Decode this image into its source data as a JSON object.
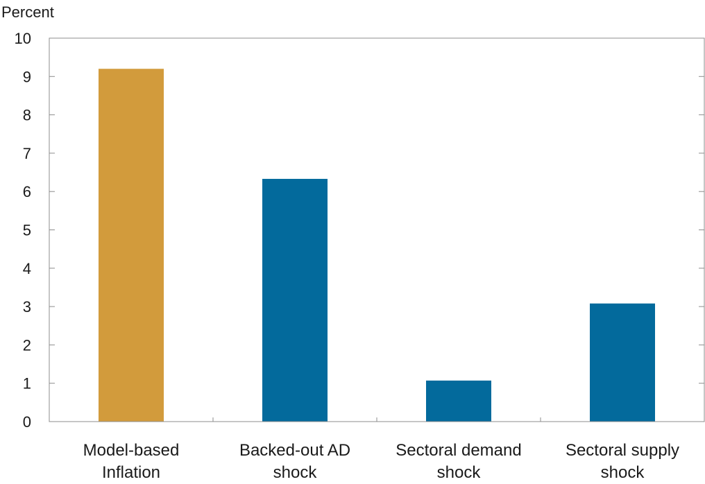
{
  "chart_data": {
    "type": "bar",
    "title": "",
    "ylabel": "Percent",
    "xlabel": "",
    "ylim": [
      0,
      10
    ],
    "yticks": [
      0,
      1,
      2,
      3,
      4,
      5,
      6,
      7,
      8,
      9,
      10
    ],
    "grid": false,
    "legend": "none",
    "categories": [
      [
        "Model-based",
        "Inflation"
      ],
      [
        "Backed-out AD",
        "shock"
      ],
      [
        "Sectoral demand",
        "shock"
      ],
      [
        "Sectoral supply",
        "shock"
      ]
    ],
    "values": [
      9.2,
      6.33,
      1.07,
      3.08
    ],
    "colors": [
      "#D29B3C",
      "#036A9C",
      "#036A9C",
      "#036A9C"
    ]
  }
}
